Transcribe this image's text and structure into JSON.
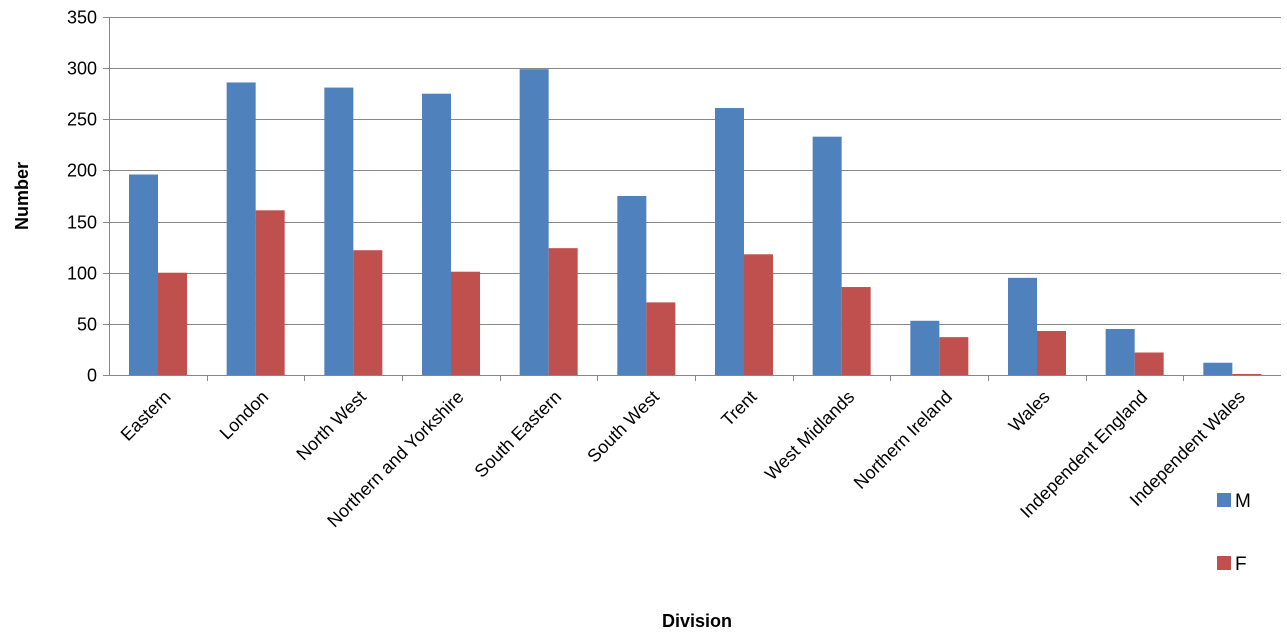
{
  "chart_data": {
    "type": "bar",
    "title": "",
    "xlabel": "Division",
    "ylabel": "Number",
    "ylim": [
      0,
      350
    ],
    "yticks": [
      0,
      50,
      100,
      150,
      200,
      250,
      300,
      350
    ],
    "grid": true,
    "legend_position": "right",
    "categories": [
      "Eastern",
      "London",
      "North West",
      "Northern and Yorkshire",
      "South Eastern",
      "South West",
      "Trent",
      "West Midlands",
      "Northern Ireland",
      "Wales",
      "Independent England",
      "Independent Wales"
    ],
    "series": [
      {
        "name": "M",
        "color": "#4F81BD",
        "values": [
          196,
          286,
          281,
          275,
          299,
          175,
          261,
          233,
          53,
          95,
          45,
          12
        ]
      },
      {
        "name": "F",
        "color": "#C0504D",
        "values": [
          100,
          161,
          122,
          101,
          124,
          71,
          118,
          86,
          37,
          43,
          22,
          1
        ]
      }
    ]
  }
}
